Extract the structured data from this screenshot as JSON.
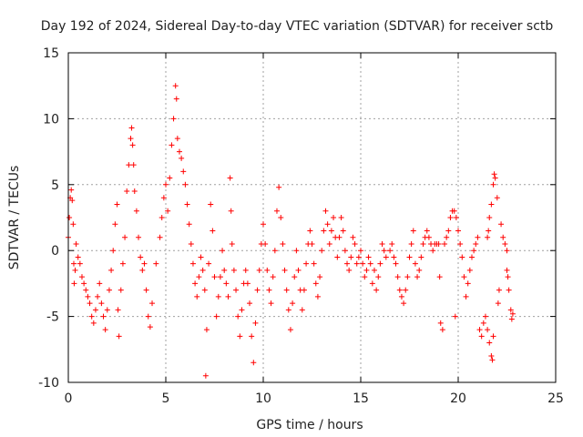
{
  "chart_data": {
    "type": "scatter",
    "marker": "+",
    "title": "Day 192 of 2024, Sidereal Day-to-day VTEC variation (SDTVAR) for receiver sctb",
    "xlabel": "GPS time / hours",
    "ylabel": "SDTVAR / TECUs",
    "xlim": [
      0,
      25
    ],
    "ylim": [
      -10,
      15
    ],
    "x_ticks": [
      0,
      5,
      10,
      15,
      20,
      25
    ],
    "y_ticks": [
      -10,
      -5,
      0,
      5,
      10,
      15
    ],
    "grid": true,
    "colors": {
      "points": "#ff0000",
      "grid": "#a0a0a0",
      "axes": "#000000"
    },
    "series": [
      {
        "name": "SDTVAR",
        "points": [
          [
            0.0,
            1.0
          ],
          [
            0.05,
            2.5
          ],
          [
            0.1,
            4.0
          ],
          [
            0.15,
            4.6
          ],
          [
            0.2,
            3.8
          ],
          [
            0.25,
            2.0
          ],
          [
            0.28,
            -1.0
          ],
          [
            0.3,
            -2.5
          ],
          [
            0.35,
            -1.5
          ],
          [
            0.4,
            0.5
          ],
          [
            0.5,
            -0.5
          ],
          [
            0.6,
            -1.0
          ],
          [
            0.7,
            -2.0
          ],
          [
            0.8,
            -2.5
          ],
          [
            0.9,
            -3.0
          ],
          [
            1.0,
            -3.5
          ],
          [
            1.1,
            -4.0
          ],
          [
            1.2,
            -5.0
          ],
          [
            1.3,
            -5.5
          ],
          [
            1.4,
            -4.5
          ],
          [
            1.5,
            -3.5
          ],
          [
            1.6,
            -2.5
          ],
          [
            1.7,
            -4.0
          ],
          [
            1.8,
            -5.0
          ],
          [
            1.9,
            -6.0
          ],
          [
            2.0,
            -4.5
          ],
          [
            2.1,
            -3.0
          ],
          [
            2.2,
            -1.5
          ],
          [
            2.3,
            0.0
          ],
          [
            2.4,
            2.0
          ],
          [
            2.5,
            3.5
          ],
          [
            2.55,
            -4.5
          ],
          [
            2.6,
            -6.5
          ],
          [
            2.7,
            -3.0
          ],
          [
            2.8,
            -1.0
          ],
          [
            2.9,
            1.0
          ],
          [
            3.0,
            4.5
          ],
          [
            3.1,
            6.5
          ],
          [
            3.2,
            8.5
          ],
          [
            3.25,
            9.3
          ],
          [
            3.3,
            8.0
          ],
          [
            3.35,
            6.5
          ],
          [
            3.4,
            4.5
          ],
          [
            3.5,
            3.0
          ],
          [
            3.6,
            1.0
          ],
          [
            3.7,
            -0.5
          ],
          [
            3.8,
            -1.5
          ],
          [
            3.9,
            -1.0
          ],
          [
            4.0,
            -3.0
          ],
          [
            4.1,
            -5.0
          ],
          [
            4.2,
            -5.8
          ],
          [
            4.3,
            -4.0
          ],
          [
            4.5,
            -1.0
          ],
          [
            4.7,
            1.0
          ],
          [
            4.8,
            2.5
          ],
          [
            4.9,
            4.0
          ],
          [
            5.0,
            5.0
          ],
          [
            5.1,
            3.0
          ],
          [
            5.2,
            5.5
          ],
          [
            5.3,
            8.0
          ],
          [
            5.4,
            10.0
          ],
          [
            5.5,
            12.5
          ],
          [
            5.55,
            11.5
          ],
          [
            5.6,
            8.5
          ],
          [
            5.7,
            7.5
          ],
          [
            5.8,
            7.0
          ],
          [
            5.9,
            6.0
          ],
          [
            6.0,
            5.0
          ],
          [
            6.1,
            3.5
          ],
          [
            6.2,
            2.0
          ],
          [
            6.3,
            0.5
          ],
          [
            6.4,
            -1.0
          ],
          [
            6.5,
            -2.5
          ],
          [
            6.6,
            -3.5
          ],
          [
            6.7,
            -2.0
          ],
          [
            6.8,
            -0.5
          ],
          [
            6.9,
            -1.5
          ],
          [
            7.0,
            -3.0
          ],
          [
            7.05,
            -9.5
          ],
          [
            7.1,
            -6.0
          ],
          [
            7.2,
            -1.0
          ],
          [
            7.3,
            3.5
          ],
          [
            7.4,
            1.5
          ],
          [
            7.5,
            -2.0
          ],
          [
            7.6,
            -5.0
          ],
          [
            7.7,
            -3.5
          ],
          [
            7.8,
            -2.0
          ],
          [
            7.9,
            0.0
          ],
          [
            8.0,
            -1.5
          ],
          [
            8.1,
            -2.5
          ],
          [
            8.2,
            -3.5
          ],
          [
            8.3,
            5.5
          ],
          [
            8.35,
            3.0
          ],
          [
            8.4,
            0.5
          ],
          [
            8.5,
            -1.5
          ],
          [
            8.6,
            -3.0
          ],
          [
            8.7,
            -5.0
          ],
          [
            8.8,
            -6.5
          ],
          [
            8.9,
            -4.5
          ],
          [
            9.0,
            -2.5
          ],
          [
            9.1,
            -1.5
          ],
          [
            9.2,
            -2.5
          ],
          [
            9.3,
            -4.0
          ],
          [
            9.4,
            -6.5
          ],
          [
            9.5,
            -8.5
          ],
          [
            9.6,
            -5.5
          ],
          [
            9.7,
            -3.0
          ],
          [
            9.8,
            -1.5
          ],
          [
            9.9,
            0.5
          ],
          [
            10.0,
            2.0
          ],
          [
            10.1,
            0.5
          ],
          [
            10.2,
            -1.5
          ],
          [
            10.3,
            -3.0
          ],
          [
            10.4,
            -4.0
          ],
          [
            10.5,
            -2.0
          ],
          [
            10.6,
            0.0
          ],
          [
            10.7,
            3.0
          ],
          [
            10.8,
            4.8
          ],
          [
            10.9,
            2.5
          ],
          [
            11.0,
            0.5
          ],
          [
            11.1,
            -1.5
          ],
          [
            11.2,
            -3.0
          ],
          [
            11.3,
            -4.5
          ],
          [
            11.4,
            -6.0
          ],
          [
            11.5,
            -4.0
          ],
          [
            11.6,
            -2.0
          ],
          [
            11.7,
            0.0
          ],
          [
            11.8,
            -1.5
          ],
          [
            11.9,
            -3.0
          ],
          [
            12.0,
            -4.5
          ],
          [
            12.1,
            -3.0
          ],
          [
            12.2,
            -1.0
          ],
          [
            12.3,
            0.5
          ],
          [
            12.4,
            1.5
          ],
          [
            12.5,
            0.5
          ],
          [
            12.6,
            -1.0
          ],
          [
            12.7,
            -2.5
          ],
          [
            12.8,
            -3.5
          ],
          [
            12.9,
            -2.0
          ],
          [
            13.0,
            0.0
          ],
          [
            13.1,
            1.5
          ],
          [
            13.2,
            3.0
          ],
          [
            13.3,
            2.0
          ],
          [
            13.4,
            0.5
          ],
          [
            13.5,
            1.5
          ],
          [
            13.6,
            2.5
          ],
          [
            13.7,
            1.0
          ],
          [
            13.8,
            -0.5
          ],
          [
            13.9,
            1.0
          ],
          [
            14.0,
            2.5
          ],
          [
            14.1,
            1.5
          ],
          [
            14.2,
            0.0
          ],
          [
            14.3,
            -1.0
          ],
          [
            14.4,
            -1.5
          ],
          [
            14.5,
            -0.5
          ],
          [
            14.6,
            1.0
          ],
          [
            14.7,
            0.5
          ],
          [
            14.8,
            -1.0
          ],
          [
            14.9,
            -0.5
          ],
          [
            15.0,
            0.0
          ],
          [
            15.1,
            -1.0
          ],
          [
            15.2,
            -2.0
          ],
          [
            15.3,
            -1.5
          ],
          [
            15.4,
            -0.5
          ],
          [
            15.5,
            -1.0
          ],
          [
            15.6,
            -2.5
          ],
          [
            15.7,
            -1.5
          ],
          [
            15.8,
            -3.0
          ],
          [
            15.9,
            -2.0
          ],
          [
            16.0,
            -1.0
          ],
          [
            16.1,
            0.5
          ],
          [
            16.2,
            0.0
          ],
          [
            16.3,
            -0.5
          ],
          [
            16.5,
            0.0
          ],
          [
            16.6,
            0.5
          ],
          [
            16.7,
            -0.5
          ],
          [
            16.8,
            -1.0
          ],
          [
            16.9,
            -2.0
          ],
          [
            17.0,
            -3.0
          ],
          [
            17.1,
            -3.5
          ],
          [
            17.2,
            -4.0
          ],
          [
            17.3,
            -3.0
          ],
          [
            17.4,
            -2.0
          ],
          [
            17.5,
            -0.5
          ],
          [
            17.6,
            0.5
          ],
          [
            17.7,
            1.5
          ],
          [
            17.8,
            -1.0
          ],
          [
            17.9,
            -2.0
          ],
          [
            18.0,
            -1.5
          ],
          [
            18.1,
            -0.5
          ],
          [
            18.2,
            0.5
          ],
          [
            18.3,
            1.0
          ],
          [
            18.4,
            1.5
          ],
          [
            18.5,
            1.0
          ],
          [
            18.6,
            0.5
          ],
          [
            18.7,
            0.0
          ],
          [
            18.8,
            0.5
          ],
          [
            18.9,
            0.5
          ],
          [
            19.0,
            0.5
          ],
          [
            19.05,
            -2.0
          ],
          [
            19.1,
            -5.5
          ],
          [
            19.2,
            -6.0
          ],
          [
            19.3,
            0.5
          ],
          [
            19.4,
            1.0
          ],
          [
            19.5,
            1.5
          ],
          [
            19.6,
            2.5
          ],
          [
            19.7,
            3.0
          ],
          [
            19.8,
            3.0
          ],
          [
            19.85,
            -5.0
          ],
          [
            19.9,
            2.5
          ],
          [
            20.0,
            1.5
          ],
          [
            20.1,
            0.5
          ],
          [
            20.2,
            -0.5
          ],
          [
            20.3,
            -2.0
          ],
          [
            20.4,
            -3.5
          ],
          [
            20.5,
            -2.5
          ],
          [
            20.6,
            -1.5
          ],
          [
            20.7,
            -0.5
          ],
          [
            20.8,
            0.0
          ],
          [
            20.9,
            0.5
          ],
          [
            21.0,
            1.0
          ],
          [
            21.1,
            -6.0
          ],
          [
            21.2,
            -6.5
          ],
          [
            21.3,
            -5.5
          ],
          [
            21.4,
            -5.0
          ],
          [
            21.5,
            -6.0
          ],
          [
            21.6,
            -7.0
          ],
          [
            21.7,
            -8.0
          ],
          [
            21.75,
            -8.3
          ],
          [
            21.8,
            -6.5
          ],
          [
            21.5,
            1.0
          ],
          [
            21.55,
            1.5
          ],
          [
            21.6,
            2.5
          ],
          [
            21.7,
            3.5
          ],
          [
            21.8,
            5.0
          ],
          [
            21.85,
            5.8
          ],
          [
            21.9,
            5.5
          ],
          [
            22.0,
            4.0
          ],
          [
            22.05,
            -4.0
          ],
          [
            22.1,
            -3.0
          ],
          [
            22.2,
            2.0
          ],
          [
            22.3,
            1.0
          ],
          [
            22.4,
            0.5
          ],
          [
            22.5,
            -1.5
          ],
          [
            22.6,
            -3.0
          ],
          [
            22.7,
            -4.5
          ],
          [
            22.75,
            -5.2
          ],
          [
            22.8,
            -4.8
          ],
          [
            22.5,
            0.0
          ],
          [
            22.55,
            -2.0
          ]
        ]
      }
    ]
  }
}
